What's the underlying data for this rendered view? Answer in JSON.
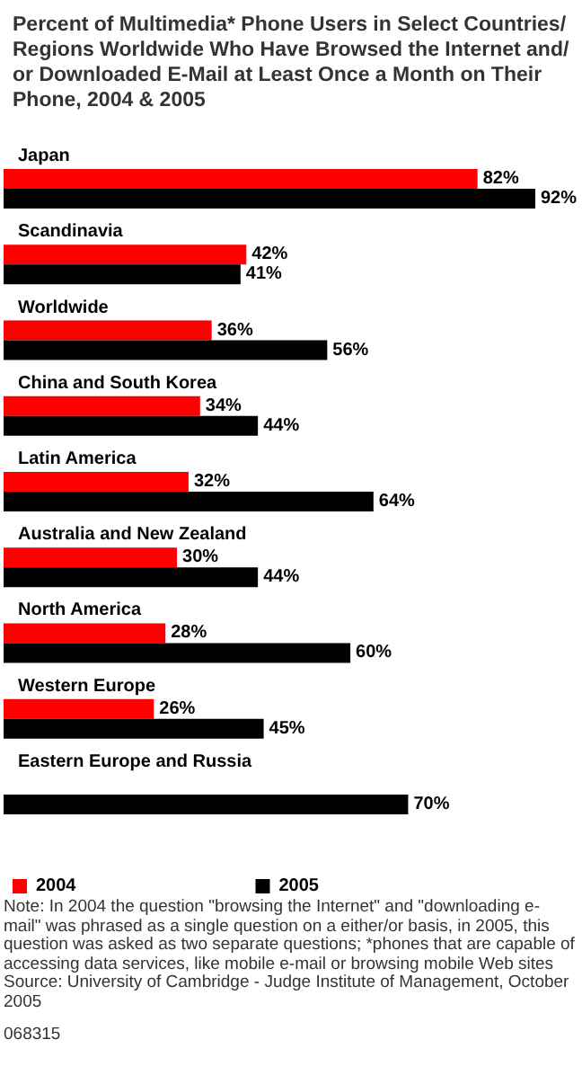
{
  "chart_data": {
    "type": "bar",
    "orientation": "horizontal",
    "title": "Percent of Multimedia* Phone Users in Select Countries/Regions Worldwide Who Have Browsed the Internet and/or Downloaded E-Mail at Least Once a Month on Their Phone, 2004 & 2005",
    "categories": [
      "Japan",
      "Scandinavia",
      "Worldwide",
      "China and South Korea",
      "Latin America",
      "Australia and New Zealand",
      "North America",
      "Western Europe",
      "Eastern Europe and Russia"
    ],
    "series": [
      {
        "name": "2004",
        "color": "#ff0000",
        "values": [
          82,
          42,
          36,
          34,
          32,
          30,
          28,
          26,
          null
        ],
        "value_labels": [
          "82%",
          "42%",
          "36%",
          "34%",
          "32%",
          "30%",
          "28%",
          "26%",
          null
        ]
      },
      {
        "name": "2005",
        "color": "#000000",
        "values": [
          92,
          41,
          56,
          44,
          64,
          44,
          60,
          45,
          70
        ],
        "value_labels": [
          "92%",
          "41%",
          "56%",
          "44%",
          "64%",
          "44%",
          "60%",
          "45%",
          "70%"
        ]
      }
    ],
    "legend": "bottom",
    "annotations": [
      "Note: In 2004 the question \"browsing the Internet\" and \"downloading e-mail\" was phrased as a single question on a either/or basis, in 2005, this question was asked as two separate questions; *phones that are capable of accessing data services, like mobile e-mail or browsing mobile Web sites",
      "Source: University of Cambridge - Judge Institute of Management, October 2005",
      "068315"
    ]
  }
}
